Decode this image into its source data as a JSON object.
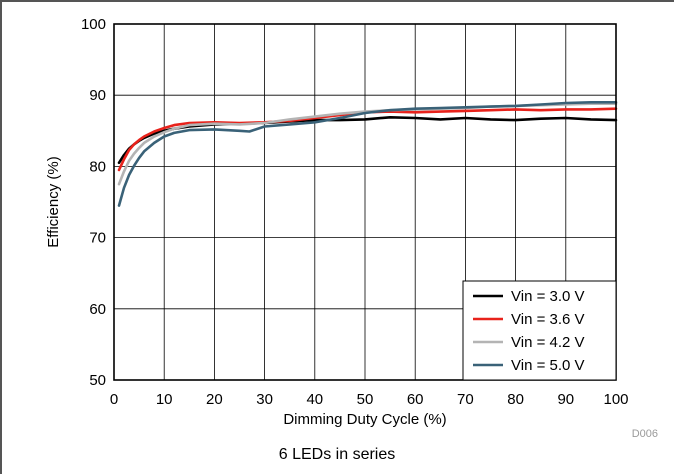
{
  "chart_data": {
    "type": "line",
    "title": "",
    "xlabel": "Dimming Duty Cycle (%)",
    "ylabel": "Efficiency (%)",
    "xlim": [
      0,
      100
    ],
    "ylim": [
      50,
      100
    ],
    "x_ticks": [
      "0",
      "10",
      "20",
      "30",
      "40",
      "50",
      "60",
      "70",
      "80",
      "90",
      "100"
    ],
    "y_ticks": [
      "50",
      "60",
      "70",
      "80",
      "90",
      "100"
    ],
    "grid": true,
    "legend_position": "bottom-right",
    "series": [
      {
        "name": "Vin = 3.0 V",
        "color": "#000000",
        "x": [
          1,
          2,
          3,
          4,
          5,
          6,
          8,
          10,
          12,
          15,
          20,
          25,
          30,
          35,
          40,
          45,
          50,
          55,
          60,
          65,
          70,
          75,
          80,
          85,
          90,
          95,
          100
        ],
        "y": [
          80.5,
          81.6,
          82.5,
          83.1,
          83.6,
          84.0,
          84.6,
          85.0,
          85.3,
          85.6,
          85.9,
          86.0,
          86.1,
          86.3,
          86.5,
          86.5,
          86.6,
          86.9,
          86.8,
          86.6,
          86.8,
          86.6,
          86.5,
          86.7,
          86.8,
          86.6,
          86.5
        ]
      },
      {
        "name": "Vin = 3.6 V",
        "color": "#e8221b",
        "x": [
          1,
          2,
          3,
          4,
          5,
          6,
          8,
          10,
          12,
          15,
          20,
          25,
          30,
          35,
          40,
          45,
          50,
          55,
          60,
          65,
          70,
          75,
          80,
          85,
          90,
          95,
          100
        ],
        "y": [
          79.5,
          81.0,
          82.3,
          83.1,
          83.7,
          84.2,
          84.9,
          85.4,
          85.8,
          86.1,
          86.2,
          86.1,
          86.2,
          86.4,
          86.8,
          87.2,
          87.6,
          87.7,
          87.6,
          87.7,
          87.8,
          87.9,
          88.0,
          87.9,
          88.0,
          88.0,
          88.1
        ]
      },
      {
        "name": "Vin = 4.2 V",
        "color": "#b4b4b4",
        "x": [
          1,
          2,
          3,
          4,
          5,
          6,
          8,
          10,
          12,
          15,
          20,
          25,
          30,
          35,
          40,
          45,
          50,
          55,
          60,
          65,
          70,
          75,
          80,
          85,
          90,
          95,
          100
        ],
        "y": [
          77.5,
          79.3,
          80.8,
          81.8,
          82.6,
          83.3,
          84.2,
          84.8,
          85.3,
          85.8,
          86.0,
          85.9,
          86.1,
          86.6,
          87.0,
          87.4,
          87.7,
          87.9,
          88.0,
          88.1,
          88.2,
          88.4,
          88.5,
          88.6,
          88.7,
          88.8,
          88.8
        ]
      },
      {
        "name": "Vin = 5.0 V",
        "color": "#3a6278",
        "x": [
          1,
          2,
          3,
          4,
          5,
          6,
          8,
          10,
          12,
          15,
          20,
          25,
          27,
          30,
          35,
          40,
          45,
          50,
          55,
          60,
          65,
          70,
          75,
          80,
          85,
          90,
          95,
          100
        ],
        "y": [
          74.5,
          77.0,
          78.8,
          80.1,
          81.2,
          82.1,
          83.3,
          84.2,
          84.7,
          85.1,
          85.2,
          85.0,
          84.9,
          85.6,
          85.9,
          86.2,
          86.8,
          87.5,
          87.9,
          88.1,
          88.2,
          88.3,
          88.4,
          88.5,
          88.7,
          88.9,
          89.0,
          89.0
        ]
      }
    ]
  },
  "figure": {
    "code_label": "D006",
    "caption": "6 LEDs in series"
  }
}
